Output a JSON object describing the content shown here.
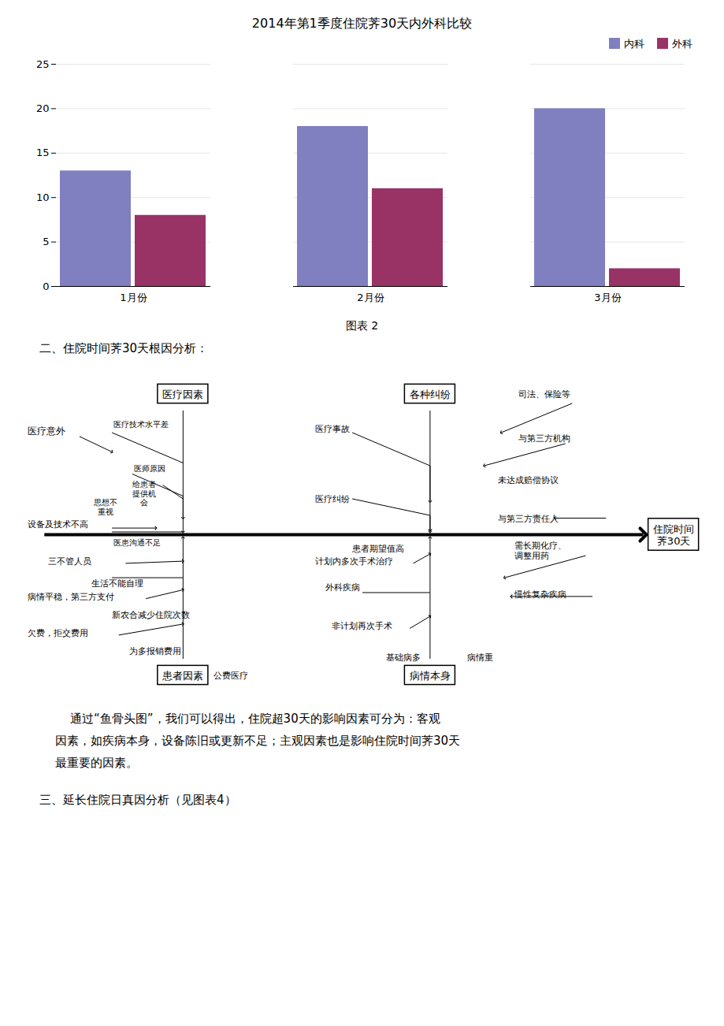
{
  "chart_data": {
    "type": "bar",
    "title": "2014年第1季度住院荠30天内外科比较",
    "categories": [
      "1月份",
      "2月份",
      "3月份"
    ],
    "series": [
      {
        "name": "内科",
        "color": "#8080c0",
        "values": [
          13,
          18,
          20
        ]
      },
      {
        "name": "外科",
        "color": "#993366",
        "values": [
          8,
          11,
          2
        ]
      }
    ],
    "ylim": [
      0,
      25
    ],
    "yticks": [
      0,
      5,
      10,
      15,
      20,
      25
    ],
    "grid": true,
    "legend": "upper right",
    "annotations": [
      "图表 2",
      "二、住院时间荠30天根因分析：",
      "住院时间\n荠30天",
      "医疗因素",
      "医疗技术水平差",
      "医师原因",
      "给患者\n提供机\n会",
      "思想不\n重视",
      "医患沟通不足",
      "医疗意外",
      "设备及技术不高",
      "各种纠纷",
      "医疗事故",
      "医疗纠纷",
      "患者期望值高",
      "司法、保险等",
      "与第三方机构",
      "未达成赔偿协议",
      "与第三方责任人",
      "患者因素",
      "三不管人员",
      "生活不能自理",
      "病情平稳，第三方支付",
      "新农合减少住院次数",
      "欠费，拒交费用",
      "为多报销费用",
      "公费医疗",
      "病情本身",
      "计划内多次手术治疗",
      "外科疾病",
      "非计划再次手术",
      "基础病多",
      "病情重",
      "需长期化疗、\n调整用药",
      "慢性复杂疾病",
      "    通过“鱼骨头图”，我们可以得出，住院超30天的影响因素可分为：客观",
      "因素，如疾病本身，设备陈旧或更新不足；主观因素也是影响住院时间荠30天",
      "最重要的因素。",
      "三、延长住院日真因分析（见图表4）"
    ]
  }
}
